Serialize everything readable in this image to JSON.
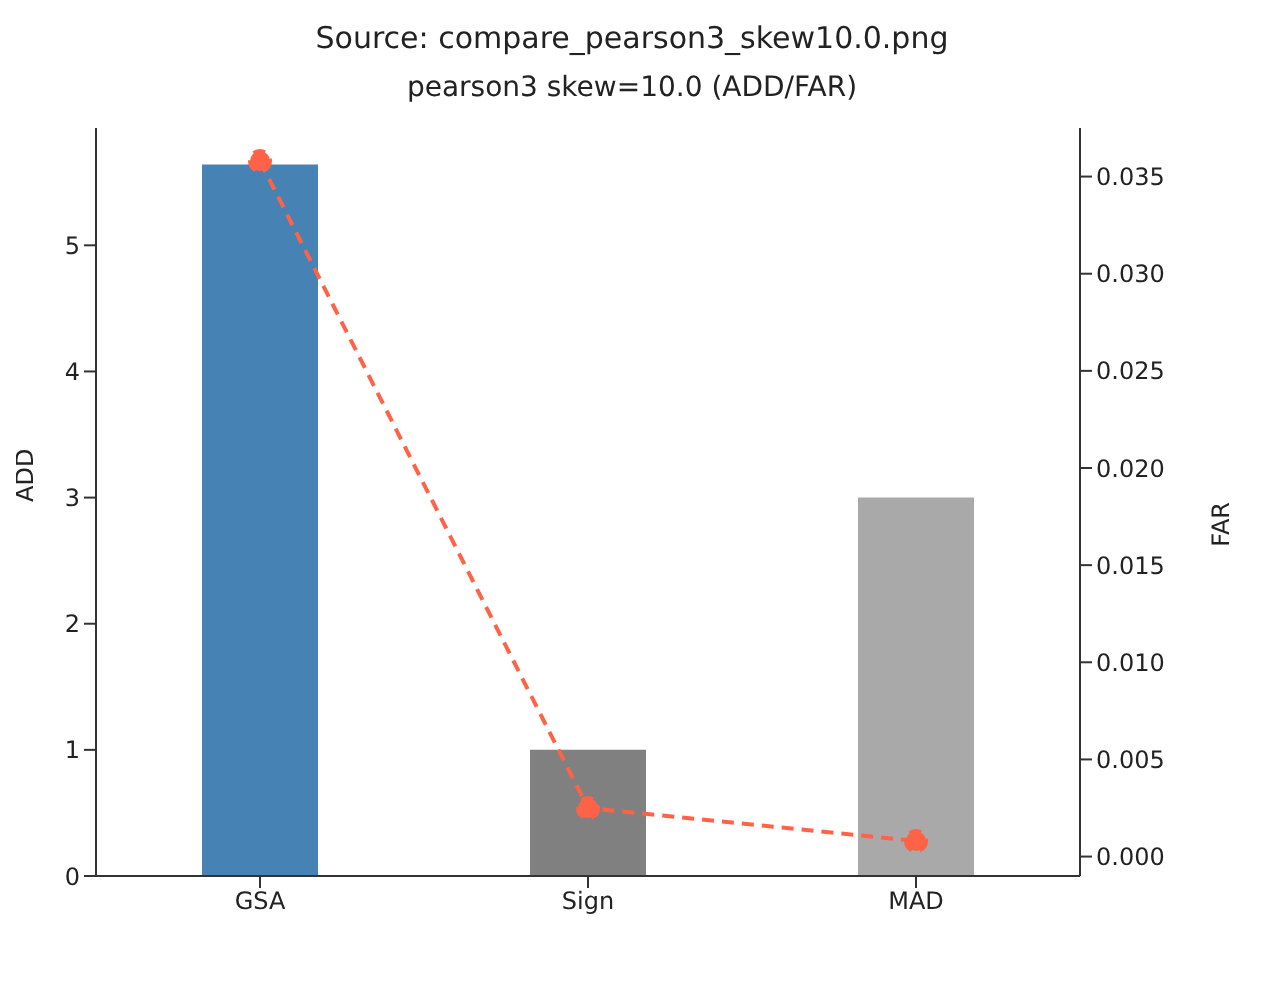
{
  "chart_data": {
    "type": "bar",
    "title": "pearson3 skew=10.0 (ADD/FAR)",
    "annotations": [
      "Source: compare_pearson3_skew10.0.png"
    ],
    "categories": [
      "GSA",
      "Sign",
      "MAD"
    ],
    "ylabel": "ADD",
    "y2label": "FAR",
    "series": [
      {
        "colors": [
          "#4682b4",
          "#808080",
          "#a9a9a9"
        ],
        "values": [
          5.64,
          1.0,
          3.0
        ]
      },
      {
        "type": "line",
        "axis": "y2",
        "color": "#ff6347",
        "values": [
          0.0358,
          0.0025,
          0.0008
        ],
        "marker": "circle",
        "line_style": "dashed"
      }
    ],
    "ylim": [
      0,
      5.93
    ],
    "yticks": [
      0,
      1,
      2,
      3,
      4,
      5
    ],
    "y2lim": [
      -0.001,
      0.0375
    ],
    "y2ticks": [
      {
        "value": 0,
        "label": "0.000"
      },
      {
        "value": 0.005,
        "label": "0.005"
      },
      {
        "value": 0.01,
        "label": "0.010"
      },
      {
        "value": 0.015,
        "label": "0.015"
      },
      {
        "value": 0.02,
        "label": "0.020"
      },
      {
        "value": 0.025,
        "label": "0.025"
      },
      {
        "value": 0.03,
        "label": "0.030"
      },
      {
        "value": 0.035,
        "label": "0.035"
      }
    ],
    "grid": false,
    "legend": false
  }
}
